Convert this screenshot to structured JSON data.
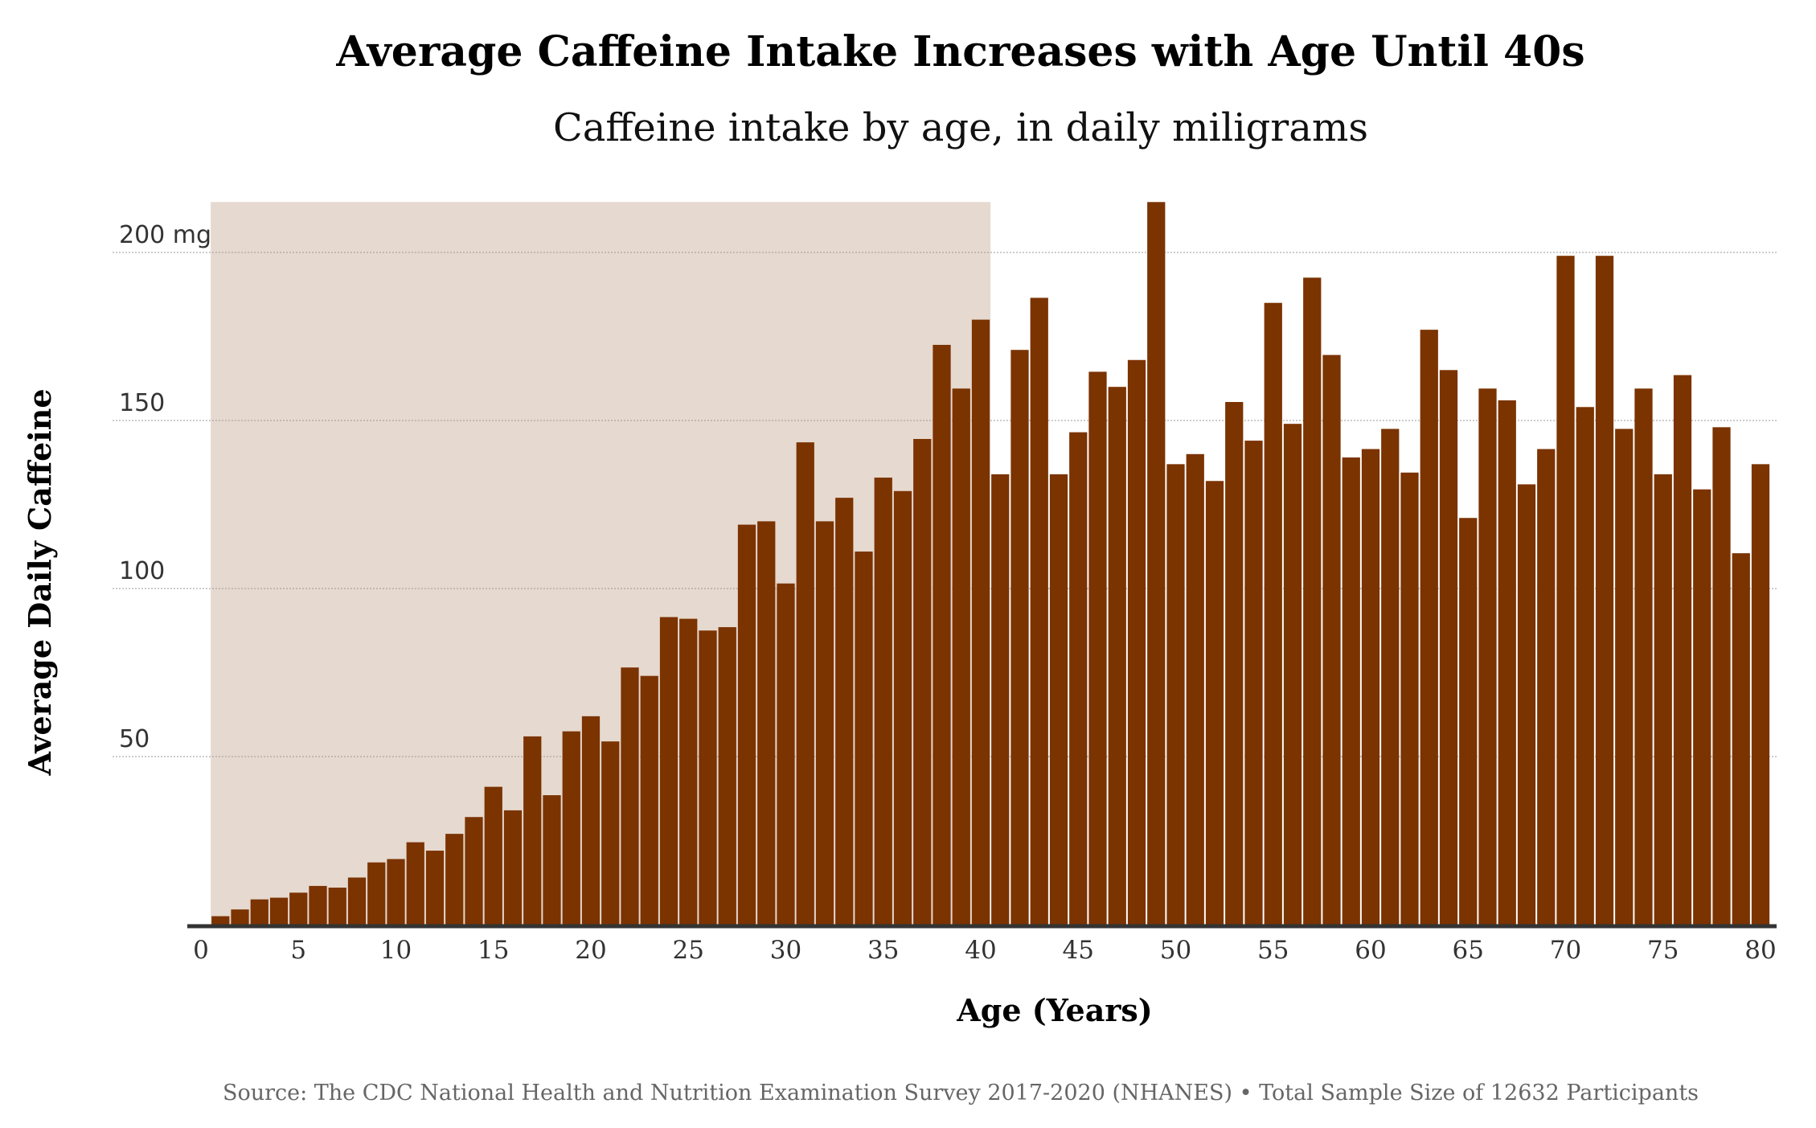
{
  "chart_data": {
    "type": "bar",
    "title": "Average Caffeine Intake Increases with Age Until 40s",
    "subtitle": "Caffeine intake by age, in daily miligrams",
    "xlabel": "Age (Years)",
    "ylabel": "Average Daily Caffeine",
    "source": "Source: The CDC National Health and Nutrition Examination Survey 2017-2020 (NHANES) • Total Sample Size of 12632 Participants",
    "x_ticks": [
      "0",
      "5",
      "10",
      "15",
      "20",
      "25",
      "30",
      "35",
      "40",
      "45",
      "50",
      "55",
      "60",
      "65",
      "70",
      "75",
      "80"
    ],
    "y_ticks": [
      {
        "value": 50,
        "label": "50"
      },
      {
        "value": 100,
        "label": "100"
      },
      {
        "value": 150,
        "label": "150"
      },
      {
        "value": 200,
        "label": "200 mg"
      }
    ],
    "xlim": [
      0,
      80.9
    ],
    "ylim": [
      0,
      215
    ],
    "grid": true,
    "highlight_range": [
      0.5,
      40.5
    ],
    "colors": {
      "bar": "#7b3300",
      "highlight": "#e6d9cf",
      "grid": "#999999",
      "axis": "#333333"
    },
    "categories": [
      1,
      2,
      3,
      4,
      5,
      6,
      7,
      8,
      9,
      10,
      11,
      12,
      13,
      14,
      15,
      16,
      17,
      18,
      19,
      20,
      21,
      22,
      23,
      24,
      25,
      26,
      27,
      28,
      29,
      30,
      31,
      32,
      33,
      34,
      35,
      36,
      37,
      38,
      39,
      40,
      41,
      42,
      43,
      44,
      45,
      46,
      47,
      48,
      49,
      50,
      51,
      52,
      53,
      54,
      55,
      56,
      57,
      58,
      59,
      60,
      61,
      62,
      63,
      64,
      65,
      66,
      67,
      68,
      69,
      70,
      71,
      72,
      73,
      74,
      75,
      76,
      77,
      78,
      79,
      80
    ],
    "values": [
      2.5,
      4.5,
      7.5,
      8,
      9.5,
      11.5,
      11,
      14,
      18.5,
      19.5,
      24.5,
      22,
      27,
      32,
      41,
      34,
      56,
      38.5,
      57.5,
      62,
      54.5,
      76.5,
      74,
      91.5,
      91,
      87.5,
      88.5,
      119,
      120,
      101.5,
      143.5,
      120,
      127,
      111,
      133,
      129,
      144.5,
      172.5,
      159.5,
      180,
      134,
      171,
      186.5,
      134,
      146.5,
      164.5,
      160,
      168,
      215,
      137,
      140,
      132,
      155.5,
      144,
      185,
      149,
      192.5,
      169.5,
      139,
      141.5,
      147.5,
      134.5,
      177,
      165,
      121,
      159.5,
      156,
      131,
      141.5,
      199,
      154,
      199,
      147.5,
      159.5,
      134,
      163.5,
      129.5,
      148,
      110.5,
      137
    ]
  }
}
